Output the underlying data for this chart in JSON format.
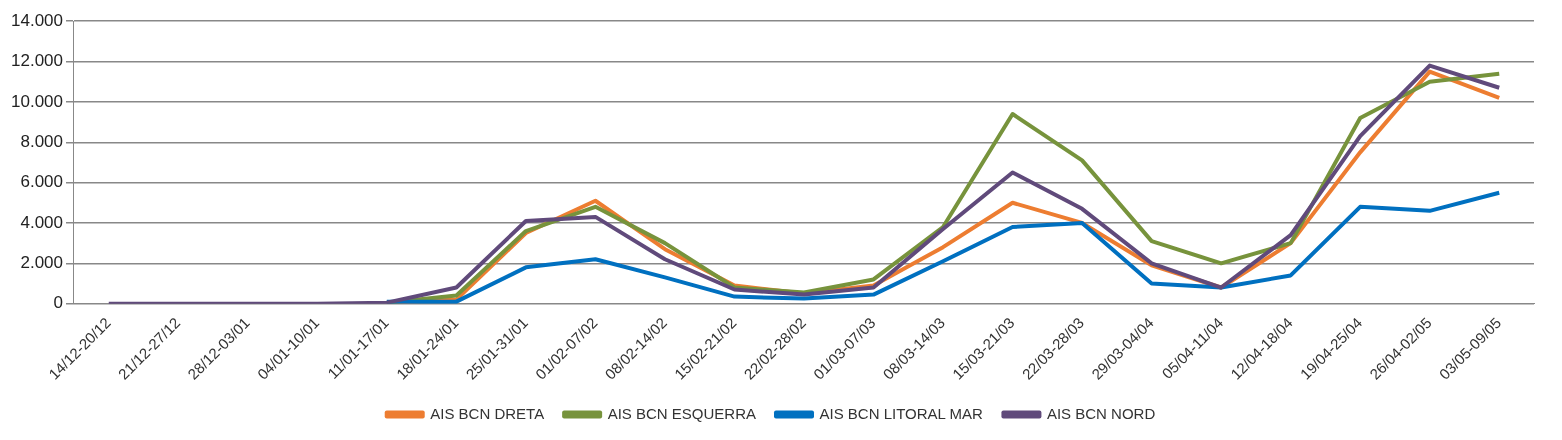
{
  "chart_data": {
    "type": "line",
    "categories": [
      "14/12-20/12",
      "21/12-27/12",
      "28/12-03/01",
      "04/01-10/01",
      "11/01-17/01",
      "18/01-24/01",
      "25/01-31/01",
      "01/02-07/02",
      "08/02-14/02",
      "15/02-21/02",
      "22/02-28/02",
      "01/03-07/03",
      "08/03-14/03",
      "15/03-21/03",
      "22/03-28/03",
      "29/03-04/04",
      "05/04-11/04",
      "12/04-18/04",
      "19/04-25/04",
      "26/04-02/05",
      "03/05-09/05"
    ],
    "series": [
      {
        "name": "AIS BCN DRETA",
        "color": "#ed7d31",
        "values": [
          null,
          null,
          null,
          null,
          50,
          200,
          3500,
          5100,
          2700,
          900,
          500,
          900,
          2800,
          5000,
          4000,
          1900,
          800,
          3000,
          7500,
          11500,
          10200
        ]
      },
      {
        "name": "AIS BCN ESQUERRA",
        "color": "#77933c",
        "values": [
          null,
          null,
          null,
          null,
          50,
          400,
          3600,
          4800,
          3000,
          800,
          550,
          1200,
          3800,
          9400,
          7100,
          3100,
          2000,
          3000,
          9200,
          11000,
          11400
        ]
      },
      {
        "name": "AIS BCN LITORAL MAR",
        "color": "#0070c0",
        "values": [
          null,
          null,
          null,
          null,
          100,
          100,
          1800,
          2200,
          1300,
          350,
          250,
          450,
          2100,
          3800,
          4000,
          1000,
          800,
          1400,
          4800,
          4600,
          5500
        ]
      },
      {
        "name": "AIS BCN NORD",
        "color": "#604a7b",
        "values": [
          0,
          0,
          0,
          0,
          50,
          800,
          4100,
          4300,
          2200,
          700,
          450,
          800,
          3700,
          6500,
          4700,
          2000,
          800,
          3400,
          8300,
          11800,
          10700
        ]
      }
    ],
    "ylim": [
      0,
      14000
    ],
    "yticks": [
      0,
      {
        "value": 2000,
        "label": "2.000"
      },
      {
        "value": 4000,
        "label": "4.000"
      },
      {
        "value": 6000,
        "label": "6.000"
      },
      {
        "value": 8000,
        "label": "8.000"
      },
      {
        "value": 10000,
        "label": "10.000"
      },
      {
        "value": 12000,
        "label": "12.000"
      },
      {
        "value": 14000,
        "label": "14.000"
      }
    ],
    "grid": "y",
    "legend": "bottom",
    "marker": "none",
    "line_style": "solid"
  }
}
